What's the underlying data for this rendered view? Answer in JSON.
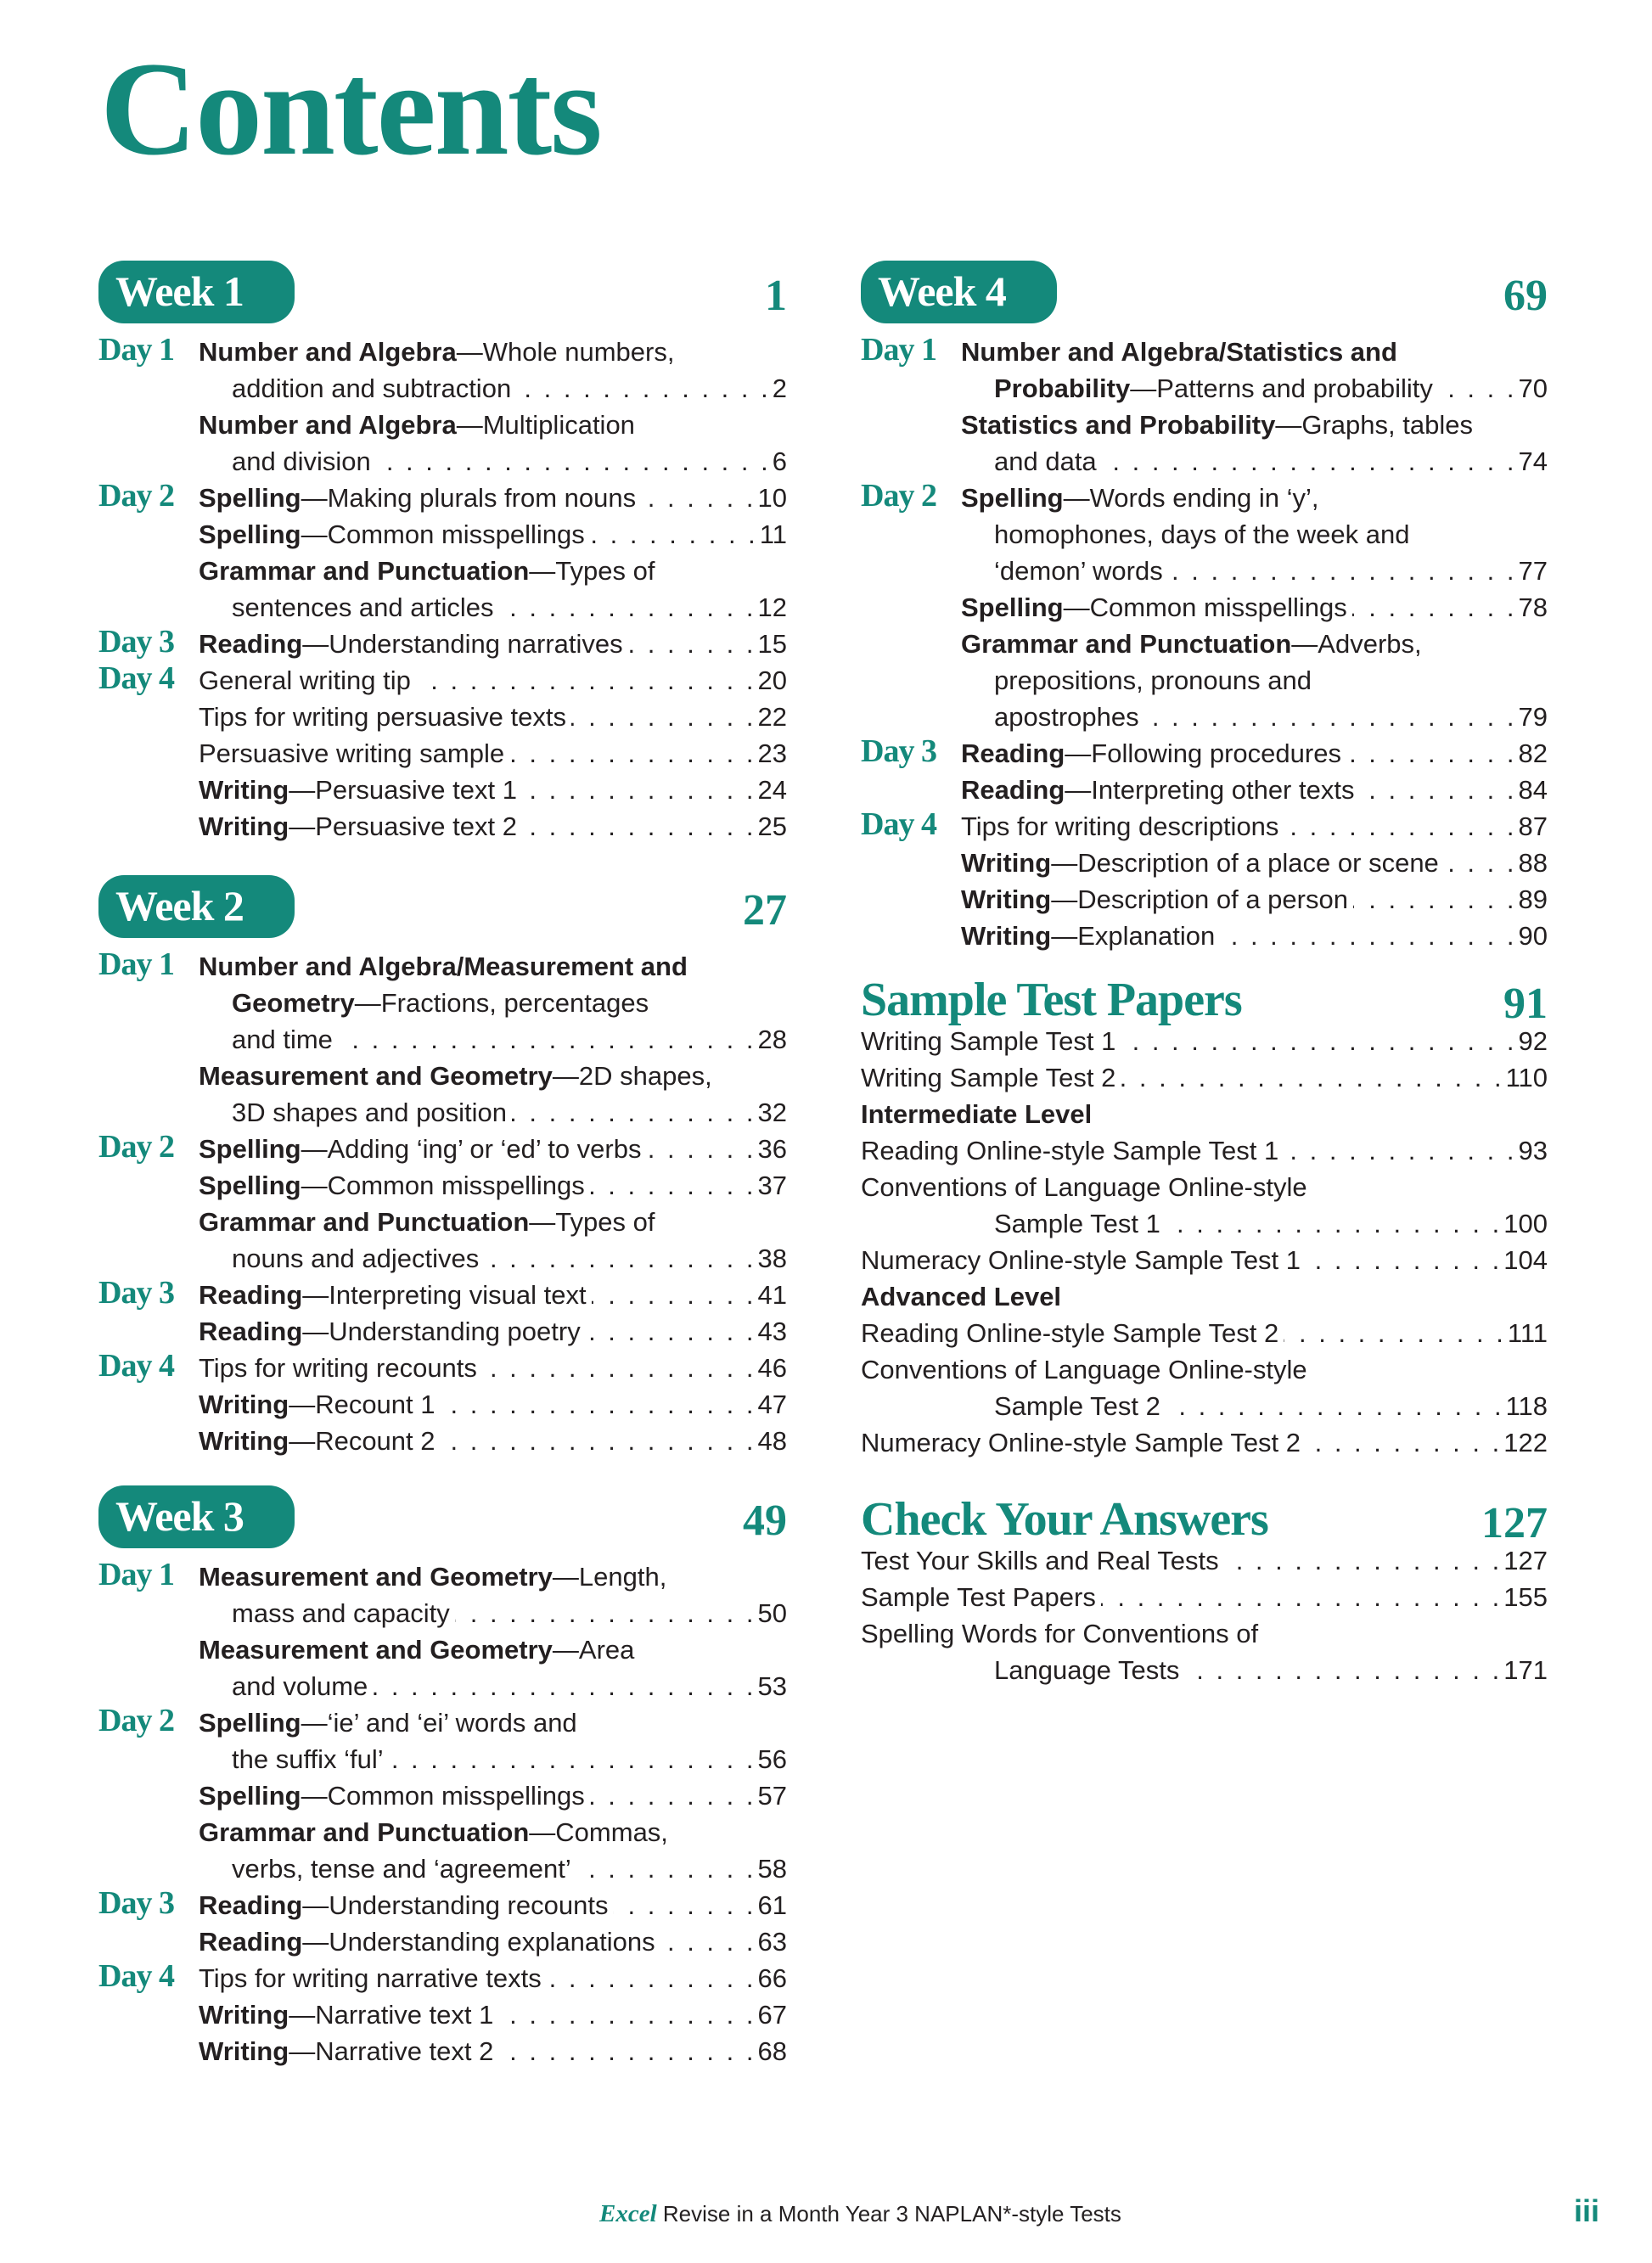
{
  "title": "Contents",
  "accent_color": "#14897b",
  "weeks": [
    {
      "label": "Week 1",
      "page": "1",
      "entries": [
        {
          "day": "Day 1",
          "bold": "Number and Algebra",
          "lines": [
            "—Whole numbers,",
            "addition and subtraction"
          ],
          "page": "2"
        },
        {
          "bold": "Number and Algebra",
          "lines": [
            "—Multiplication",
            "and division"
          ],
          "page": "6"
        },
        {
          "day": "Day 2",
          "bold": "Spelling",
          "lines": [
            "—Making plurals from nouns"
          ],
          "page": "10"
        },
        {
          "bold": "Spelling",
          "lines": [
            "—Common misspellings"
          ],
          "page": "11"
        },
        {
          "bold": "Grammar and Punctuation",
          "lines": [
            "—Types of",
            "sentences and articles"
          ],
          "page": "12"
        },
        {
          "day": "Day 3",
          "bold": "Reading",
          "lines": [
            "—Understanding narratives"
          ],
          "page": "15"
        },
        {
          "day": "Day 4",
          "bold": "",
          "lines": [
            "General writing tip"
          ],
          "page": "20"
        },
        {
          "bold": "",
          "lines": [
            "Tips for writing persuasive texts"
          ],
          "page": "22"
        },
        {
          "bold": "",
          "lines": [
            "Persuasive writing sample"
          ],
          "page": "23"
        },
        {
          "bold": "Writing",
          "lines": [
            "—Persuasive text 1"
          ],
          "page": "24"
        },
        {
          "bold": "Writing",
          "lines": [
            "—Persuasive text 2"
          ],
          "page": "25"
        }
      ]
    },
    {
      "label": "Week 2",
      "page": "27",
      "entries": [
        {
          "day": "Day 1",
          "bold": "Number and Algebra/Measurement and",
          "lines": [
            "",
            "Geometry|—Fractions, percentages",
            "and time"
          ],
          "page": "28"
        },
        {
          "bold": "Measurement and Geometry",
          "lines": [
            "—2D shapes,",
            "3D shapes and position"
          ],
          "page": "32"
        },
        {
          "day": "Day 2",
          "bold": "Spelling",
          "lines": [
            "—Adding ‘ing’ or ‘ed’ to verbs"
          ],
          "page": "36"
        },
        {
          "bold": "Spelling",
          "lines": [
            "—Common misspellings"
          ],
          "page": "37"
        },
        {
          "bold": "Grammar and Punctuation",
          "lines": [
            "—Types of",
            "nouns and adjectives"
          ],
          "page": "38"
        },
        {
          "day": "Day 3",
          "bold": "Reading",
          "lines": [
            "—Interpreting visual text"
          ],
          "page": "41"
        },
        {
          "bold": "Reading",
          "lines": [
            "—Understanding poetry"
          ],
          "page": "43"
        },
        {
          "day": "Day 4",
          "bold": "",
          "lines": [
            "Tips for writing recounts"
          ],
          "page": "46"
        },
        {
          "bold": "Writing",
          "lines": [
            "—Recount 1"
          ],
          "page": "47"
        },
        {
          "bold": "Writing",
          "lines": [
            "—Recount 2"
          ],
          "page": "48"
        }
      ]
    },
    {
      "label": "Week 3",
      "page": "49",
      "entries": [
        {
          "day": "Day 1",
          "bold": "Measurement and Geometry",
          "lines": [
            "—Length,",
            "mass and capacity"
          ],
          "page": "50"
        },
        {
          "bold": "Measurement and Geometry",
          "lines": [
            "—Area",
            "and volume"
          ],
          "page": "53"
        },
        {
          "day": "Day 2",
          "bold": "Spelling",
          "lines": [
            "—‘ie’ and ‘ei’ words and",
            "the suffix ‘ful’"
          ],
          "page": "56"
        },
        {
          "bold": "Spelling",
          "lines": [
            "—Common misspellings"
          ],
          "page": "57"
        },
        {
          "bold": "Grammar and Punctuation",
          "lines": [
            "—Commas,",
            "verbs, tense and ‘agreement’"
          ],
          "page": "58"
        },
        {
          "day": "Day 3",
          "bold": "Reading",
          "lines": [
            "—Understanding recounts"
          ],
          "page": "61"
        },
        {
          "bold": "Reading",
          "lines": [
            "—Understanding explanations"
          ],
          "page": "63"
        },
        {
          "day": "Day 4",
          "bold": "",
          "lines": [
            "Tips for writing narrative texts"
          ],
          "page": "66"
        },
        {
          "bold": "Writing",
          "lines": [
            "—Narrative text 1"
          ],
          "page": "67"
        },
        {
          "bold": "Writing",
          "lines": [
            "—Narrative text 2"
          ],
          "page": "68"
        }
      ]
    },
    {
      "label": "Week 4",
      "page": "69",
      "entries": [
        {
          "day": "Day 1",
          "bold": "Number and Algebra/Statistics and",
          "lines": [
            "",
            "Probability|—Patterns and probability"
          ],
          "page": "70"
        },
        {
          "bold": "Statistics and Probability",
          "lines": [
            "—Graphs, tables",
            "and data"
          ],
          "page": "74"
        },
        {
          "day": "Day 2",
          "bold": "Spelling",
          "lines": [
            "—Words ending in ‘y’,",
            "homophones, days of the week and",
            "‘demon’ words"
          ],
          "page": "77"
        },
        {
          "bold": "Spelling",
          "lines": [
            "—Common misspellings"
          ],
          "page": "78"
        },
        {
          "bold": "Grammar and Punctuation",
          "lines": [
            "—Adverbs,",
            "prepositions, pronouns and",
            "apostrophes"
          ],
          "page": "79"
        },
        {
          "day": "Day 3",
          "bold": "Reading",
          "lines": [
            "—Following procedures"
          ],
          "page": "82"
        },
        {
          "bold": "Reading",
          "lines": [
            "—Interpreting other texts"
          ],
          "page": "84"
        },
        {
          "day": "Day 4",
          "bold": "",
          "lines": [
            "Tips for writing descriptions"
          ],
          "page": "87"
        },
        {
          "bold": "Writing",
          "lines": [
            "—Description of a place or scene"
          ],
          "page": "88"
        },
        {
          "bold": "Writing",
          "lines": [
            "—Description of a person"
          ],
          "page": "89"
        },
        {
          "bold": "Writing",
          "lines": [
            "—Explanation"
          ],
          "page": "90"
        }
      ]
    }
  ],
  "sample_tests": {
    "title": "Sample Test Papers",
    "page": "91",
    "entries": [
      {
        "bold": "",
        "lines": [
          "Writing Sample Test 1"
        ],
        "page": "92"
      },
      {
        "bold": "",
        "lines": [
          "Writing Sample Test 2"
        ],
        "page": "110"
      },
      {
        "bold": "Intermediate Level",
        "lines": [
          ""
        ],
        "page": ""
      },
      {
        "bold": "",
        "lines": [
          "Reading Online-style Sample Test 1"
        ],
        "page": "93"
      },
      {
        "bold": "",
        "lines": [
          "Conventions of Language Online-style",
          "Sample Test 1"
        ],
        "page": "100"
      },
      {
        "bold": "",
        "lines": [
          "Numeracy Online-style Sample Test 1"
        ],
        "page": "104"
      },
      {
        "bold": "Advanced Level",
        "lines": [
          ""
        ],
        "page": ""
      },
      {
        "bold": "",
        "lines": [
          "Reading Online-style Sample Test 2"
        ],
        "page": "111"
      },
      {
        "bold": "",
        "lines": [
          "Conventions of Language Online-style",
          "Sample Test 2"
        ],
        "page": "118"
      },
      {
        "bold": "",
        "lines": [
          "Numeracy Online-style Sample Test 2"
        ],
        "page": "122"
      }
    ]
  },
  "answers": {
    "title": "Check Your Answers",
    "page": "127",
    "entries": [
      {
        "bold": "",
        "lines": [
          "Test Your Skills and Real Tests"
        ],
        "page": "127"
      },
      {
        "bold": "",
        "lines": [
          "Sample Test Papers"
        ],
        "page": "155"
      },
      {
        "bold": "",
        "lines": [
          "Spelling Words for Conventions of",
          "Language Tests"
        ],
        "page": "171"
      }
    ]
  },
  "footer": {
    "brand": "Excel",
    "text": " Revise in a Month Year 3 NAPLAN*-style Tests",
    "page_number": "iii"
  }
}
